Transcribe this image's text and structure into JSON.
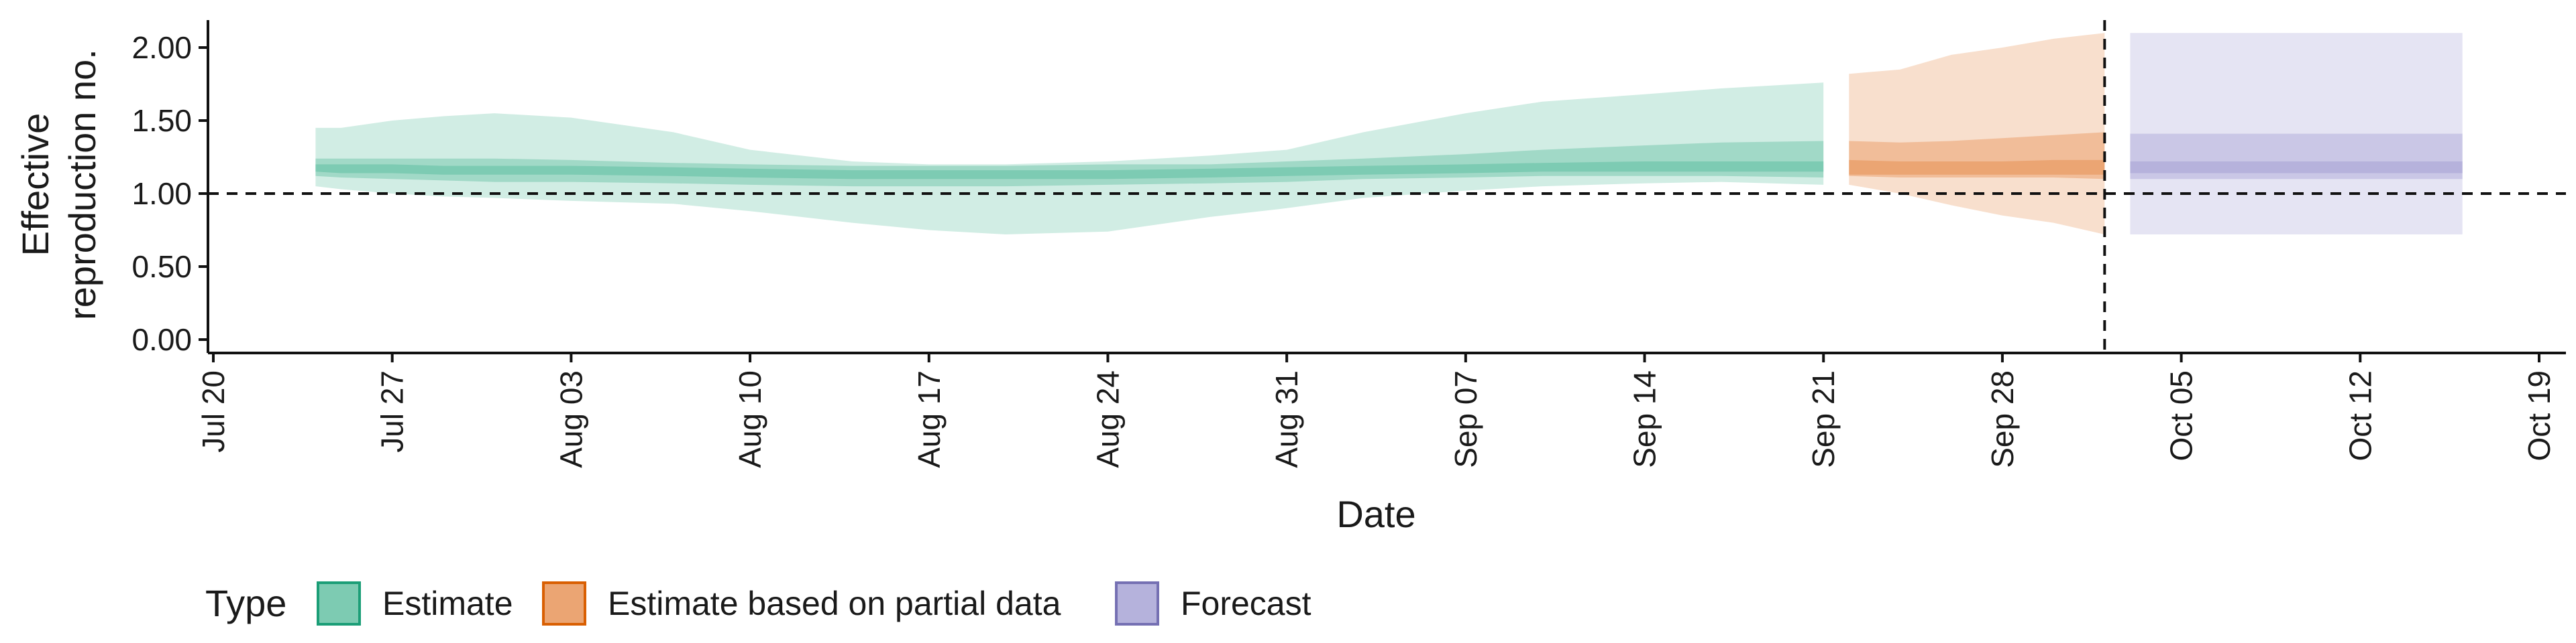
{
  "chart_data": {
    "type": "area",
    "xlabel": "Date",
    "ylabel": [
      "Effective",
      "reproduction no."
    ],
    "ylim": [
      0,
      2.2
    ],
    "yticks": [
      0,
      0.5,
      1.0,
      1.5,
      2.0
    ],
    "ytick_labels": [
      "0.00",
      "0.50",
      "1.00",
      "1.50",
      "2.00"
    ],
    "xlim": [
      "2020-07-20",
      "2020-10-20"
    ],
    "xticks": [
      "2020-07-20",
      "2020-07-27",
      "2020-08-03",
      "2020-08-10",
      "2020-08-17",
      "2020-08-24",
      "2020-08-31",
      "2020-09-07",
      "2020-09-14",
      "2020-09-21",
      "2020-09-28",
      "2020-10-05",
      "2020-10-12",
      "2020-10-19"
    ],
    "xtick_labels": [
      "Jul 20",
      "Jul 27",
      "Aug 03",
      "Aug 10",
      "Aug 17",
      "Aug 24",
      "Aug 31",
      "Sep 07",
      "Sep 14",
      "Sep 21",
      "Sep 28",
      "Oct 05",
      "Oct 12",
      "Oct 19"
    ],
    "hline": 1.0,
    "vline": "2020-10-02",
    "grid": false,
    "legend": {
      "title": "Type",
      "position": "bottom-left",
      "items": [
        {
          "name": "Estimate",
          "color": "#1b9e77",
          "fill": "#66c2a5"
        },
        {
          "name": "Estimate based on partial data",
          "color": "#d95f02",
          "fill": "#e8955a"
        },
        {
          "name": "Forecast",
          "color": "#7570b3",
          "fill": "#a8a4d6"
        }
      ]
    },
    "series": [
      {
        "name": "Estimate",
        "color": "#1b9e77",
        "x": [
          "2020-07-24",
          "2020-07-25",
          "2020-07-27",
          "2020-07-29",
          "2020-07-31",
          "2020-08-03",
          "2020-08-07",
          "2020-08-10",
          "2020-08-14",
          "2020-08-17",
          "2020-08-20",
          "2020-08-24",
          "2020-08-28",
          "2020-08-31",
          "2020-09-03",
          "2020-09-07",
          "2020-09-10",
          "2020-09-14",
          "2020-09-17",
          "2020-09-21"
        ],
        "outer_lower": [
          1.05,
          1.03,
          1.0,
          0.98,
          0.97,
          0.95,
          0.93,
          0.88,
          0.8,
          0.75,
          0.72,
          0.74,
          0.84,
          0.9,
          0.97,
          1.02,
          1.05,
          1.07,
          1.08,
          1.06
        ],
        "outer_upper": [
          1.45,
          1.45,
          1.5,
          1.53,
          1.55,
          1.52,
          1.42,
          1.3,
          1.22,
          1.2,
          1.2,
          1.22,
          1.26,
          1.3,
          1.42,
          1.55,
          1.63,
          1.68,
          1.72,
          1.76
        ],
        "mid_lower": [
          1.12,
          1.11,
          1.1,
          1.09,
          1.08,
          1.08,
          1.07,
          1.06,
          1.05,
          1.05,
          1.05,
          1.06,
          1.07,
          1.08,
          1.1,
          1.11,
          1.12,
          1.12,
          1.12,
          1.11
        ],
        "mid_upper": [
          1.24,
          1.24,
          1.24,
          1.24,
          1.24,
          1.23,
          1.21,
          1.2,
          1.19,
          1.19,
          1.19,
          1.2,
          1.2,
          1.22,
          1.24,
          1.27,
          1.3,
          1.33,
          1.35,
          1.36
        ],
        "inner_lower": [
          1.15,
          1.14,
          1.14,
          1.13,
          1.13,
          1.13,
          1.12,
          1.11,
          1.1,
          1.1,
          1.1,
          1.1,
          1.11,
          1.12,
          1.13,
          1.14,
          1.15,
          1.15,
          1.15,
          1.15
        ],
        "inner_upper": [
          1.2,
          1.2,
          1.2,
          1.19,
          1.19,
          1.19,
          1.18,
          1.17,
          1.16,
          1.16,
          1.16,
          1.16,
          1.17,
          1.18,
          1.19,
          1.2,
          1.21,
          1.22,
          1.22,
          1.22
        ]
      },
      {
        "name": "Estimate based on partial data",
        "color": "#d95f02",
        "x": [
          "2020-09-22",
          "2020-09-24",
          "2020-09-26",
          "2020-09-28",
          "2020-09-30",
          "2020-10-02"
        ],
        "outer_lower": [
          1.06,
          1.0,
          0.92,
          0.85,
          0.8,
          0.72
        ],
        "outer_upper": [
          1.82,
          1.85,
          1.95,
          2.0,
          2.06,
          2.1
        ],
        "mid_lower": [
          1.12,
          1.11,
          1.11,
          1.11,
          1.11,
          1.1
        ],
        "mid_upper": [
          1.36,
          1.35,
          1.36,
          1.38,
          1.4,
          1.42
        ],
        "inner_lower": [
          1.13,
          1.13,
          1.13,
          1.13,
          1.13,
          1.13
        ],
        "inner_upper": [
          1.23,
          1.22,
          1.22,
          1.22,
          1.23,
          1.23
        ]
      },
      {
        "name": "Forecast",
        "color": "#7570b3",
        "x": [
          "2020-10-03",
          "2020-10-16"
        ],
        "outer_lower": [
          0.72,
          0.72
        ],
        "outer_upper": [
          2.1,
          2.1
        ],
        "mid_lower": [
          1.1,
          1.1
        ],
        "mid_upper": [
          1.41,
          1.41
        ],
        "inner_lower": [
          1.14,
          1.14
        ],
        "inner_upper": [
          1.22,
          1.22
        ]
      }
    ]
  }
}
